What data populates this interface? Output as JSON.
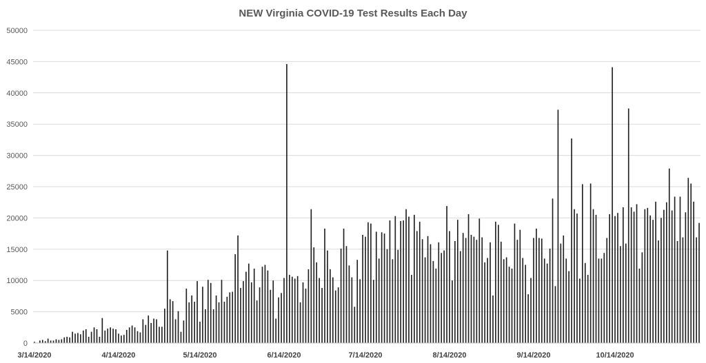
{
  "chart_data": {
    "type": "bar",
    "title": "NEW Virginia COVID-19 Test Results Each Day",
    "xlabel": "",
    "ylabel": "",
    "ylim": [
      0,
      50000
    ],
    "yticks": [
      0,
      5000,
      10000,
      15000,
      20000,
      25000,
      30000,
      35000,
      40000,
      45000,
      50000
    ],
    "ytick_labels": [
      "0",
      "5000",
      "10000",
      "15000",
      "20000",
      "25000",
      "30000",
      "35000",
      "40000",
      "45000",
      "50000"
    ],
    "x_tick_labels": [
      "3/14/2020",
      "4/14/2020",
      "5/14/2020",
      "6/14/2020",
      "7/14/2020",
      "8/14/2020",
      "9/14/2020",
      "10/14/2020"
    ],
    "x_tick_index": [
      0,
      31,
      61,
      92,
      122,
      153,
      184,
      214
    ],
    "grid": true,
    "legend": "none",
    "bar_color": "#1f1f1f",
    "series": [
      {
        "start_date": "3/14/2020",
        "values": [
          200,
          50,
          400,
          500,
          300,
          700,
          400,
          400,
          600,
          500,
          600,
          900,
          1000,
          900,
          1800,
          1500,
          1600,
          1400,
          2000,
          2200,
          1000,
          1800,
          2500,
          2200,
          1000,
          4000,
          2000,
          2300,
          2500,
          2300,
          2200,
          1500,
          1200,
          1300,
          2100,
          2500,
          2800,
          2500,
          1900,
          1700,
          3800,
          2900,
          4400,
          3200,
          3900,
          3800,
          2600,
          2600,
          5500,
          14800,
          7000,
          6700,
          3800,
          5100,
          1800,
          3600,
          8700,
          6500,
          7600,
          6600,
          9900,
          3400,
          9000,
          5400,
          10100,
          9600,
          5400,
          7600,
          6500,
          10100,
          6600,
          7400,
          8100,
          8200,
          14200,
          17200,
          8800,
          9900,
          11400,
          12700,
          9700,
          11900,
          6800,
          8900,
          12200,
          12500,
          11600,
          8500,
          10000,
          3900,
          7300,
          8000,
          10400,
          44600,
          10900,
          10600,
          10300,
          10700,
          6500,
          9700,
          8700,
          11800,
          21400,
          15300,
          12900,
          10400,
          8800,
          18300,
          14800,
          11800,
          10500,
          8400,
          8900,
          15100,
          18300,
          15500,
          12400,
          10500,
          5800,
          13300,
          10200,
          17300,
          17000,
          19300,
          19100,
          10100,
          17800,
          13500,
          17700,
          17500,
          15000,
          19600,
          13400,
          20300,
          14900,
          19500,
          19600,
          21400,
          20200,
          10900,
          20500,
          17900,
          19400,
          16600,
          13700,
          17100,
          15800,
          13100,
          11900,
          16100,
          14400,
          14800,
          21900,
          17900,
          10000,
          16300,
          19700,
          14700,
          17600,
          16800,
          20600,
          17300,
          17000,
          16500,
          19900,
          16900,
          12900,
          13600,
          16100,
          7600,
          19400,
          18900,
          16200,
          13400,
          13700,
          12200,
          11900,
          19100,
          16500,
          18100,
          13600,
          12500,
          7800,
          10400,
          16800,
          18300,
          16800,
          16700,
          13500,
          12700,
          15100,
          23100,
          9100,
          37300,
          15900,
          17200,
          13500,
          11500,
          32700,
          21400,
          20700,
          10300,
          25400,
          12800,
          10900,
          25500,
          21400,
          20500,
          13500,
          13500,
          14400,
          16800,
          20600,
          44100,
          20300,
          20800,
          15500,
          21700,
          15900,
          37500,
          21700,
          21000,
          22200,
          11900,
          14500,
          21400,
          21600,
          20400,
          19700,
          22600,
          16400,
          20000,
          21300,
          22500,
          27900,
          21200,
          23400,
          16300,
          23400,
          16900,
          20900,
          26400,
          25500,
          22600,
          16900,
          19200
        ]
      }
    ]
  }
}
